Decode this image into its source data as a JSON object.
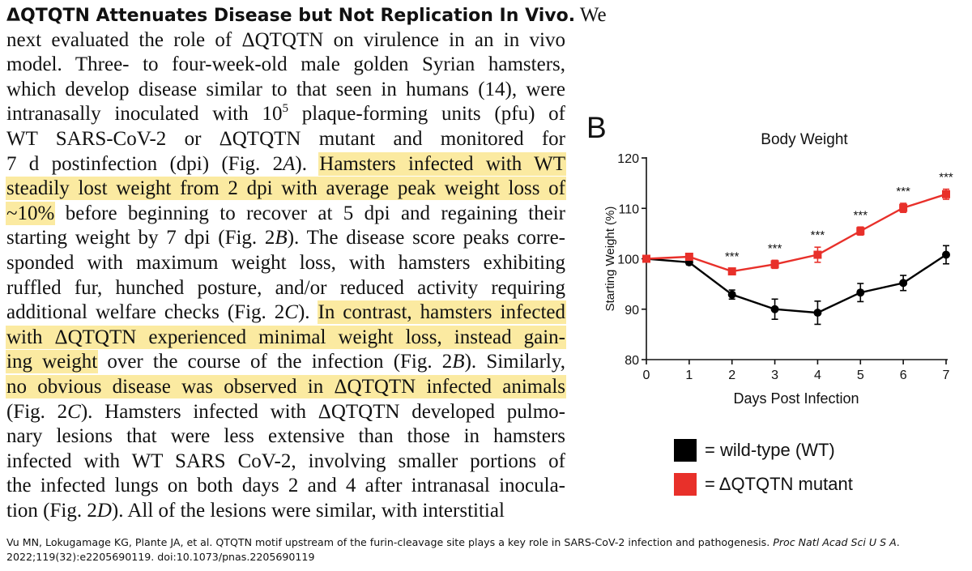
{
  "paragraph": {
    "heading": "ΔQTQTN Attenuates Disease but Not Replication In Vivo.",
    "lines": [
      [
        {
          "t": "ΔQTQTN Attenuates Disease but Not Replication In Vivo.",
          "s": "head"
        },
        {
          "t": " We"
        }
      ],
      [
        {
          "t": "next evaluated the role of ΔQTQTN on virulence in an in vivo"
        }
      ],
      [
        {
          "t": "model. Three- to four-week-old male golden Syrian hamsters,"
        }
      ],
      [
        {
          "t": "which develop disease similar to that seen in humans (14), were"
        }
      ],
      [
        {
          "t": "intranasally inoculated with 10"
        },
        {
          "t": "5",
          "s": "sup"
        },
        {
          "t": " plaque-forming units (pfu) of"
        }
      ],
      [
        {
          "t": "WT SARS-CoV-2 or ΔQTQTN mutant and monitored for"
        }
      ],
      [
        {
          "t": "7 d postinfection (dpi) (Fig. 2"
        },
        {
          "t": "A",
          "s": "i"
        },
        {
          "t": "). "
        },
        {
          "t": "Hamsters infected with WT",
          "s": "hl"
        }
      ],
      [
        {
          "t": "steadily lost weight from 2 dpi with average peak weight loss of",
          "s": "hl"
        }
      ],
      [
        {
          "t": "~10%",
          "s": "hl"
        },
        {
          "t": " before beginning to recover at 5 dpi and regaining their"
        }
      ],
      [
        {
          "t": "starting weight by 7 dpi (Fig. 2"
        },
        {
          "t": "B",
          "s": "i"
        },
        {
          "t": "). The disease score peaks corre-"
        }
      ],
      [
        {
          "t": "sponded with maximum weight loss, with hamsters exhibiting"
        }
      ],
      [
        {
          "t": "ruffled fur, hunched posture, and/or reduced activity requiring"
        }
      ],
      [
        {
          "t": "additional welfare checks (Fig. 2"
        },
        {
          "t": "C",
          "s": "i"
        },
        {
          "t": "). "
        },
        {
          "t": "In contrast, hamsters infected",
          "s": "hl"
        }
      ],
      [
        {
          "t": "with ΔQTQTN experienced minimal weight loss, instead gain-",
          "s": "hl"
        }
      ],
      [
        {
          "t": "ing weight",
          "s": "hl"
        },
        {
          "t": " over the course of the infection (Fig. 2"
        },
        {
          "t": "B",
          "s": "i"
        },
        {
          "t": "). Similarly,"
        }
      ],
      [
        {
          "t": "no obvious disease was observed in ΔQTQTN infected animals",
          "s": "hl"
        }
      ],
      [
        {
          "t": "(Fig. 2"
        },
        {
          "t": "C",
          "s": "i"
        },
        {
          "t": "). Hamsters infected with ΔQTQTN developed pulmo-"
        }
      ],
      [
        {
          "t": "nary lesions that were less extensive than those in hamsters"
        }
      ],
      [
        {
          "t": "infected with WT SARS CoV-2, involving smaller portions of"
        }
      ],
      [
        {
          "t": "the infected lungs on both days 2 and 4 after intranasal inocula-"
        }
      ],
      [
        {
          "t": "tion (Fig. 2"
        },
        {
          "t": "D",
          "s": "i"
        },
        {
          "t": "). All of the lesions were similar, with interstitial"
        }
      ]
    ]
  },
  "citation": {
    "prefix": "Vu MN, Lokugamage KG, Plante JA, et al. QTQTN motif upstream of the furin-cleavage site plays a key role in SARS-CoV-2 infection and pathogenesis. ",
    "journal": "Proc Natl Acad Sci U S A",
    "suffix": ". 2022;119(32):e2205690119. doi:10.1073/pnas.2205690119"
  },
  "figure": {
    "panel_letter": "B",
    "legend": [
      {
        "label": "= wild-type (WT)",
        "color": "#000000"
      },
      {
        "label": "= ΔQTQTN mutant",
        "color": "#e8302a"
      }
    ]
  },
  "chart_data": {
    "type": "line",
    "title": "Body Weight",
    "xlabel": "Days Post Infection",
    "ylabel": "Starting Weight (%)",
    "x": [
      0,
      1,
      2,
      3,
      4,
      5,
      6,
      7
    ],
    "xlim": [
      0,
      7
    ],
    "ylim": [
      80,
      120
    ],
    "yticks": [
      80,
      90,
      100,
      110,
      120
    ],
    "grid": false,
    "series": [
      {
        "name": "wild-type (WT)",
        "color": "#000000",
        "marker": "circle",
        "values": [
          100,
          99.3,
          92.9,
          90.0,
          89.3,
          93.3,
          95.2,
          100.8
        ],
        "errors": [
          0,
          0.5,
          0.9,
          2.0,
          2.3,
          1.8,
          1.5,
          1.8
        ]
      },
      {
        "name": "ΔQTQTN mutant",
        "color": "#e8302a",
        "marker": "square",
        "values": [
          100,
          100.4,
          97.5,
          98.9,
          100.8,
          105.5,
          110.1,
          112.8
        ],
        "errors": [
          0,
          0.4,
          0.6,
          0.8,
          1.5,
          0.8,
          0.9,
          1.0
        ]
      }
    ],
    "annotations": [
      {
        "x": 2,
        "text": "***"
      },
      {
        "x": 3,
        "text": "***"
      },
      {
        "x": 4,
        "text": "***"
      },
      {
        "x": 5,
        "text": "***"
      },
      {
        "x": 6,
        "text": "***"
      },
      {
        "x": 7,
        "text": "***"
      }
    ]
  }
}
